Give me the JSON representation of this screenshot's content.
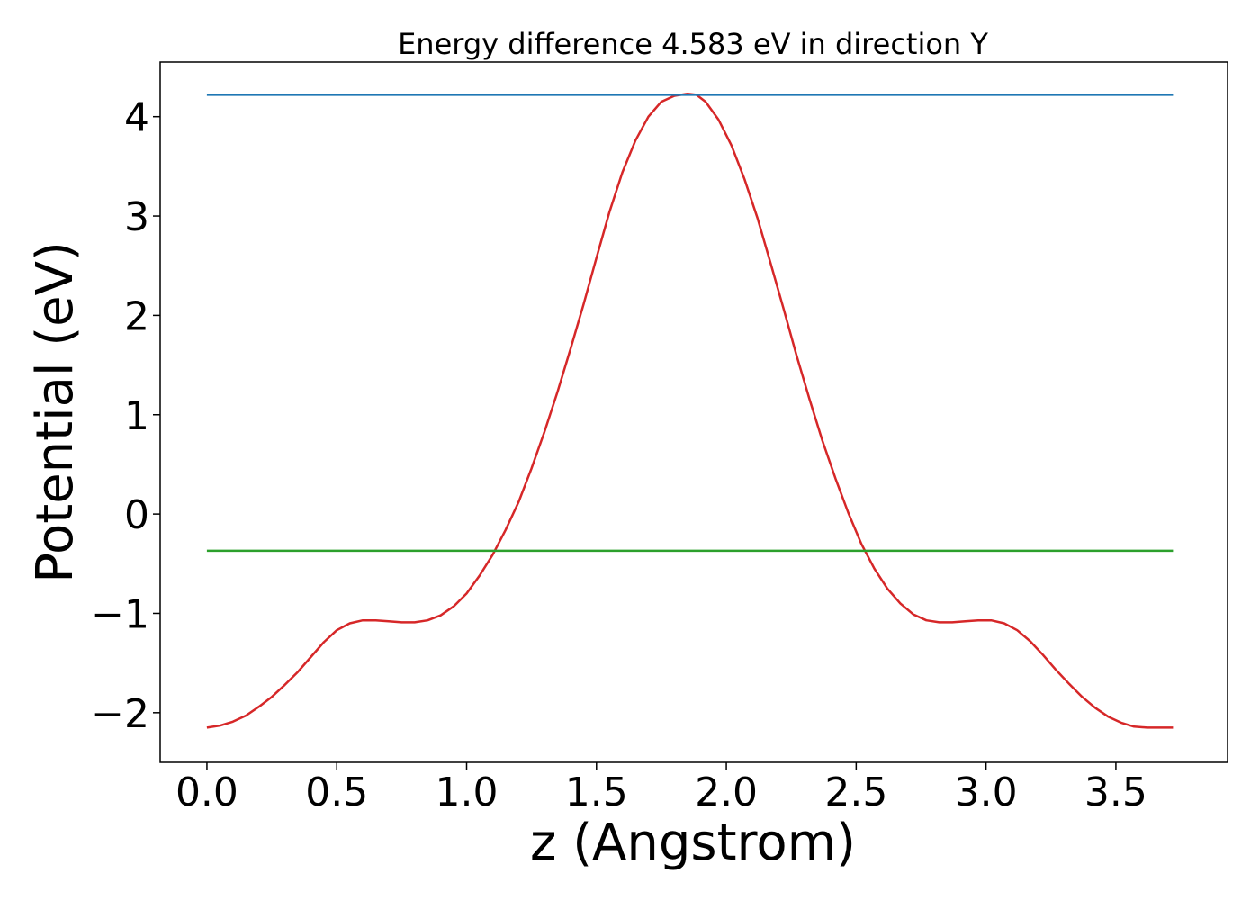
{
  "chart_data": {
    "type": "line",
    "title": "Energy difference 4.583 eV in direction Y",
    "xlabel": "z (Angstrom)",
    "ylabel": "Potential (eV)",
    "xlim": [
      -0.18,
      3.93
    ],
    "ylim": [
      -2.5,
      4.55
    ],
    "xticks": [
      0.0,
      0.5,
      1.0,
      1.5,
      2.0,
      2.5,
      3.0,
      3.5
    ],
    "xtick_labels": [
      "0.0",
      "0.5",
      "1.0",
      "1.5",
      "2.0",
      "2.5",
      "3.0",
      "3.5"
    ],
    "yticks": [
      -2,
      -1,
      0,
      1,
      2,
      3,
      4
    ],
    "ytick_labels": [
      "−2",
      "−1",
      "0",
      "1",
      "2",
      "3",
      "4"
    ],
    "grid": false,
    "series": [
      {
        "color": "#d62728",
        "x": [
          0.0,
          0.05,
          0.1,
          0.15,
          0.2,
          0.25,
          0.3,
          0.35,
          0.4,
          0.45,
          0.5,
          0.55,
          0.6,
          0.65,
          0.7,
          0.75,
          0.8,
          0.85,
          0.9,
          0.95,
          1.0,
          1.05,
          1.1,
          1.15,
          1.2,
          1.25,
          1.3,
          1.35,
          1.4,
          1.45,
          1.5,
          1.55,
          1.6,
          1.65,
          1.7,
          1.75,
          1.8,
          1.85,
          1.885,
          1.92,
          1.97,
          2.02,
          2.07,
          2.12,
          2.17,
          2.22,
          2.27,
          2.32,
          2.37,
          2.42,
          2.47,
          2.52,
          2.57,
          2.62,
          2.67,
          2.72,
          2.77,
          2.82,
          2.87,
          2.92,
          2.97,
          3.02,
          3.07,
          3.12,
          3.17,
          3.22,
          3.27,
          3.32,
          3.37,
          3.42,
          3.47,
          3.52,
          3.57,
          3.62,
          3.67,
          3.72
        ],
        "y": [
          -2.15,
          -2.13,
          -2.09,
          -2.03,
          -1.94,
          -1.84,
          -1.72,
          -1.59,
          -1.44,
          -1.29,
          -1.17,
          -1.1,
          -1.07,
          -1.07,
          -1.08,
          -1.09,
          -1.09,
          -1.07,
          -1.02,
          -0.93,
          -0.8,
          -0.62,
          -0.41,
          -0.16,
          0.12,
          0.46,
          0.83,
          1.23,
          1.66,
          2.11,
          2.58,
          3.04,
          3.44,
          3.76,
          4.0,
          4.15,
          4.21,
          4.23,
          4.22,
          4.15,
          3.97,
          3.71,
          3.37,
          2.98,
          2.53,
          2.07,
          1.6,
          1.16,
          0.74,
          0.36,
          0.01,
          -0.3,
          -0.55,
          -0.75,
          -0.9,
          -1.01,
          -1.07,
          -1.09,
          -1.09,
          -1.08,
          -1.07,
          -1.07,
          -1.1,
          -1.17,
          -1.28,
          -1.42,
          -1.57,
          -1.71,
          -1.84,
          -1.95,
          -2.04,
          -2.1,
          -2.14,
          -2.15,
          -2.15,
          -2.15
        ]
      },
      {
        "color": "#1f77b4",
        "x": [
          0.0,
          3.72
        ],
        "y": [
          4.22,
          4.22
        ]
      },
      {
        "color": "#2ca02c",
        "x": [
          0.0,
          3.72
        ],
        "y": [
          -0.37,
          -0.37
        ]
      }
    ]
  }
}
